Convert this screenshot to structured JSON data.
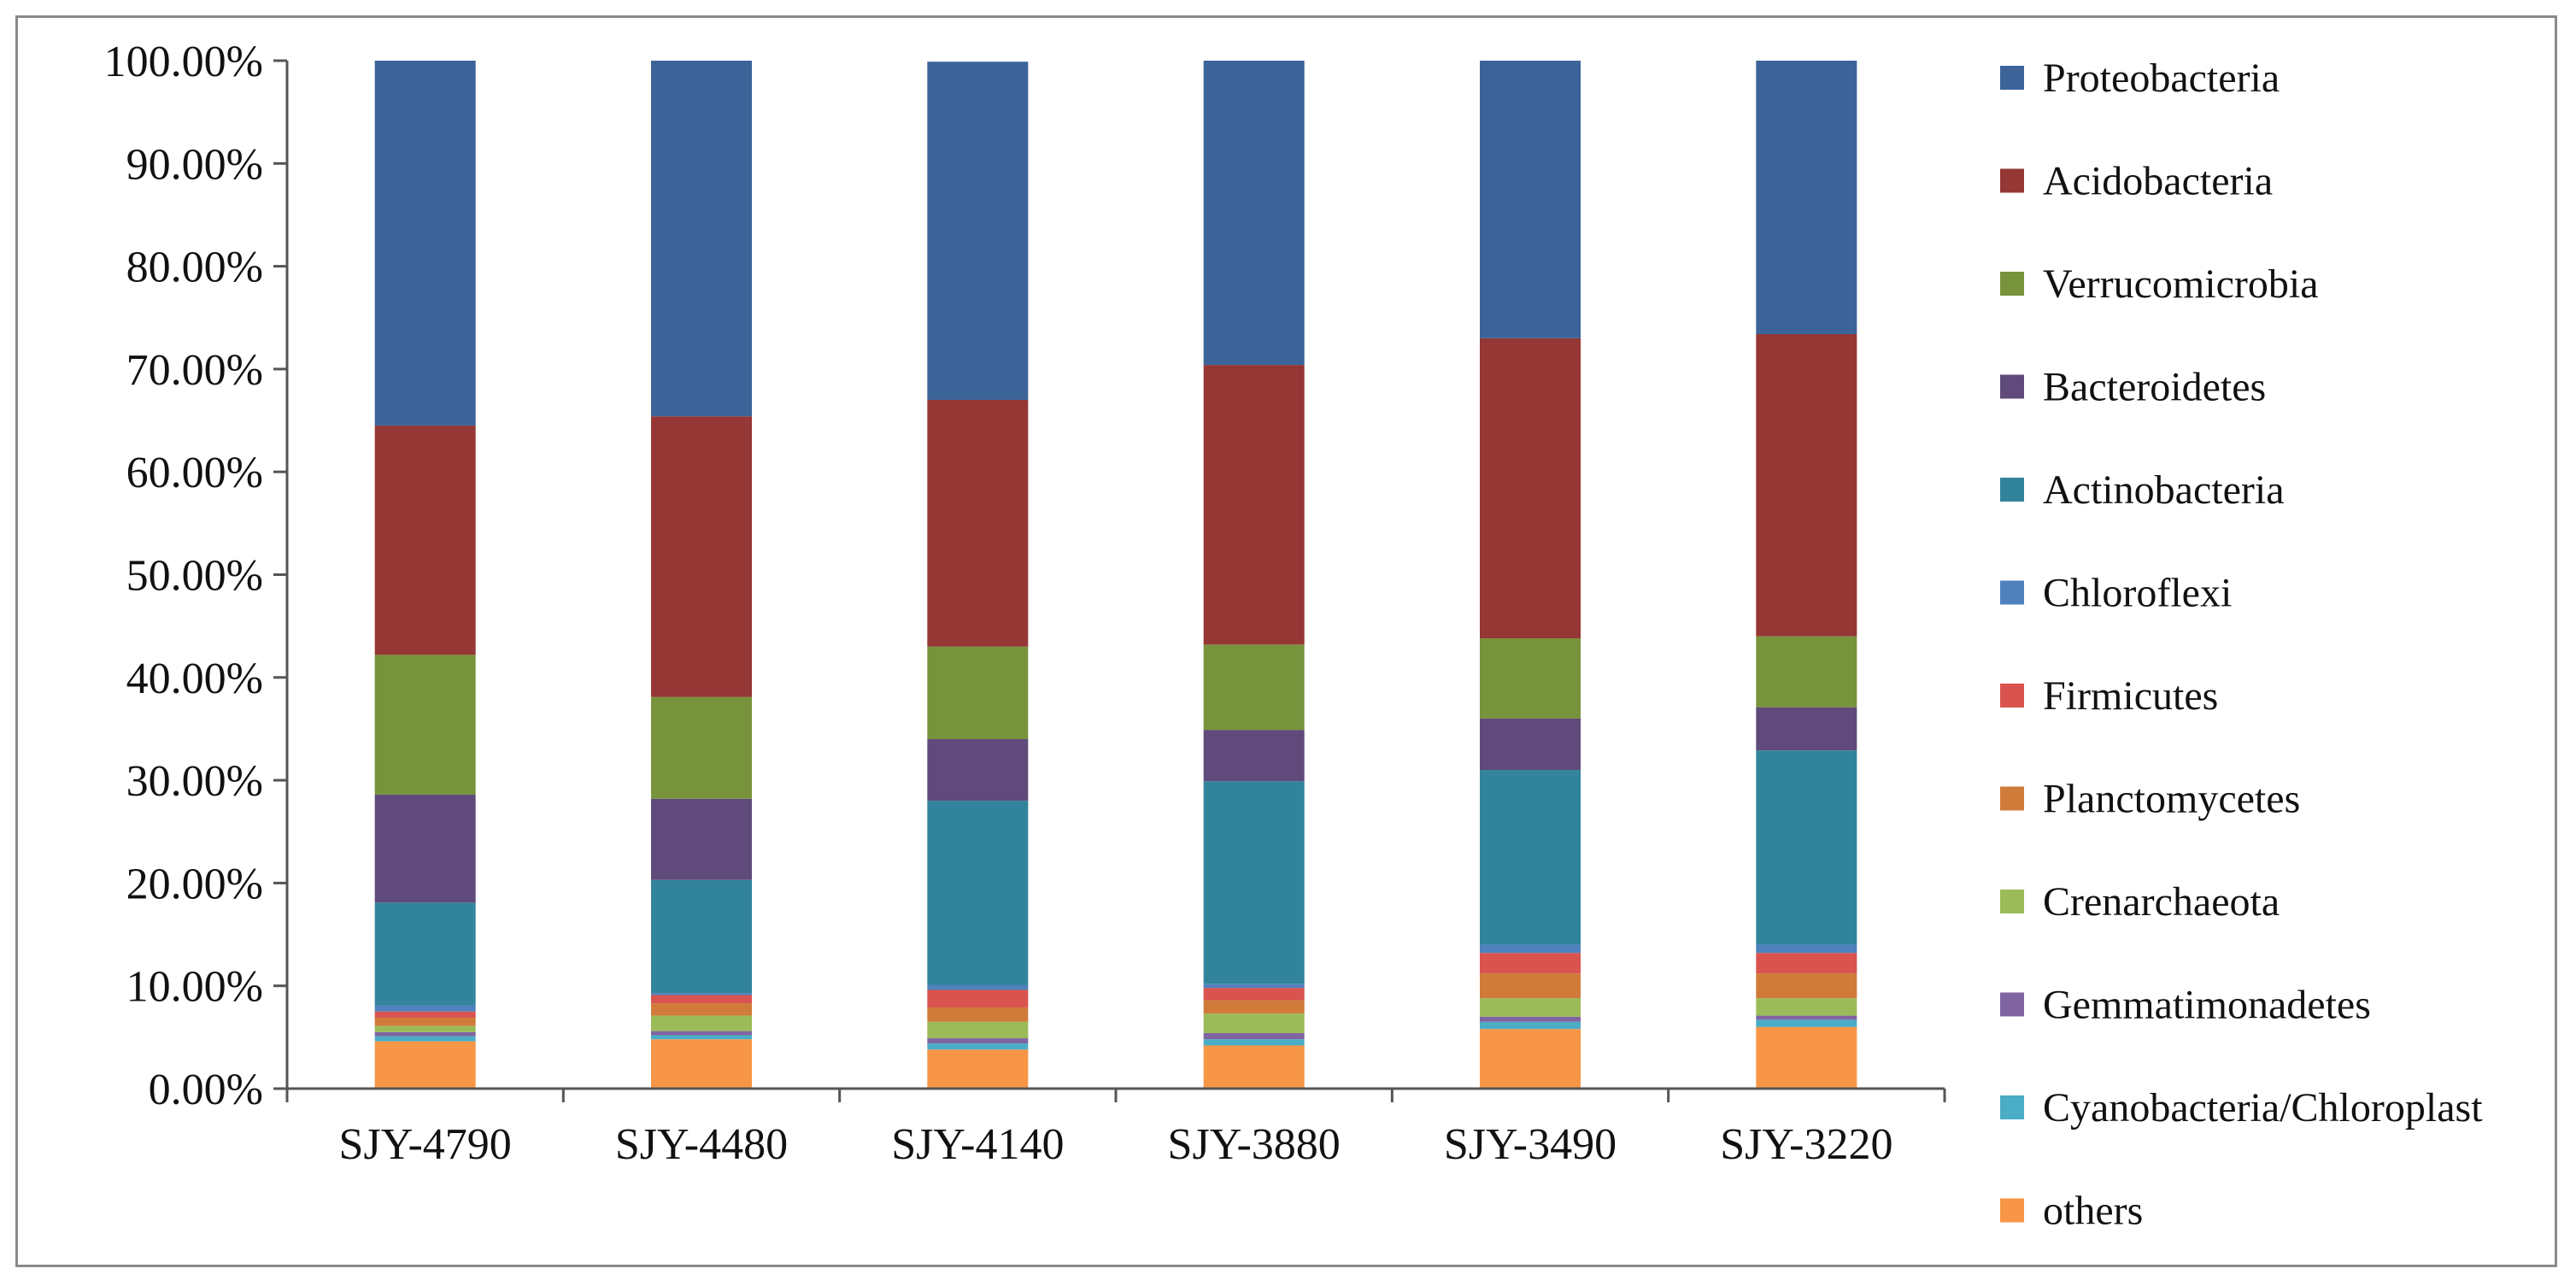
{
  "chart_data": {
    "type": "bar",
    "stacked": true,
    "percent": true,
    "title": "",
    "xlabel": "",
    "ylabel": "",
    "ylim": [
      0,
      100
    ],
    "y_ticks": [
      "0.00%",
      "10.00%",
      "20.00%",
      "30.00%",
      "40.00%",
      "50.00%",
      "60.00%",
      "70.00%",
      "80.00%",
      "90.00%",
      "100.00%"
    ],
    "categories": [
      "SJY-4790",
      "SJY-4480",
      "SJY-4140",
      "SJY-3880",
      "SJY-3490",
      "SJY-3220"
    ],
    "legend_position": "right",
    "series": [
      {
        "name": "others",
        "color": "#f79646",
        "values": [
          4.6,
          4.8,
          3.8,
          4.2,
          5.8,
          6.0
        ]
      },
      {
        "name": "Cyanobacteria/Chloroplast",
        "color": "#4bacc6",
        "values": [
          0.5,
          0.4,
          0.6,
          0.6,
          0.7,
          0.7
        ]
      },
      {
        "name": "Gemmatimonadetes",
        "color": "#8064a2",
        "values": [
          0.4,
          0.4,
          0.5,
          0.6,
          0.5,
          0.4
        ]
      },
      {
        "name": "Crenarchaeota",
        "color": "#9bbb59",
        "values": [
          0.6,
          1.5,
          1.6,
          1.9,
          1.8,
          1.7
        ]
      },
      {
        "name": "Planctomycetes",
        "color": "#d07b39",
        "values": [
          0.8,
          1.2,
          1.4,
          1.3,
          2.4,
          2.4
        ]
      },
      {
        "name": "Firmicutes",
        "color": "#d9534f",
        "values": [
          0.6,
          0.8,
          1.7,
          1.2,
          2.0,
          2.0
        ]
      },
      {
        "name": "Chloroflexi",
        "color": "#4f81bd",
        "values": [
          0.6,
          0.2,
          0.5,
          0.4,
          0.8,
          0.8
        ]
      },
      {
        "name": "Actinobacteria",
        "color": "#31849b",
        "values": [
          10.0,
          11.0,
          17.9,
          19.7,
          17.0,
          18.9
        ]
      },
      {
        "name": "Bacteroidetes",
        "color": "#604a7b",
        "values": [
          10.5,
          7.9,
          6.0,
          5.0,
          5.0,
          4.2
        ]
      },
      {
        "name": "Verrucomicrobia",
        "color": "#77933c",
        "values": [
          13.6,
          9.9,
          9.0,
          8.3,
          7.8,
          6.9
        ]
      },
      {
        "name": "Acidobacteria",
        "color": "#953735",
        "values": [
          22.3,
          27.3,
          24.0,
          27.2,
          29.2,
          29.4
        ]
      },
      {
        "name": "Proteobacteria",
        "color": "#3c6499",
        "values": [
          35.5,
          34.6,
          32.9,
          29.6,
          27.0,
          26.6
        ]
      }
    ],
    "legend_order": [
      "Proteobacteria",
      "Acidobacteria",
      "Verrucomicrobia",
      "Bacteroidetes",
      "Actinobacteria",
      "Chloroflexi",
      "Firmicutes",
      "Planctomycetes",
      "Crenarchaeota",
      "Gemmatimonadetes",
      "Cyanobacteria/Chloroplast",
      "others"
    ]
  }
}
